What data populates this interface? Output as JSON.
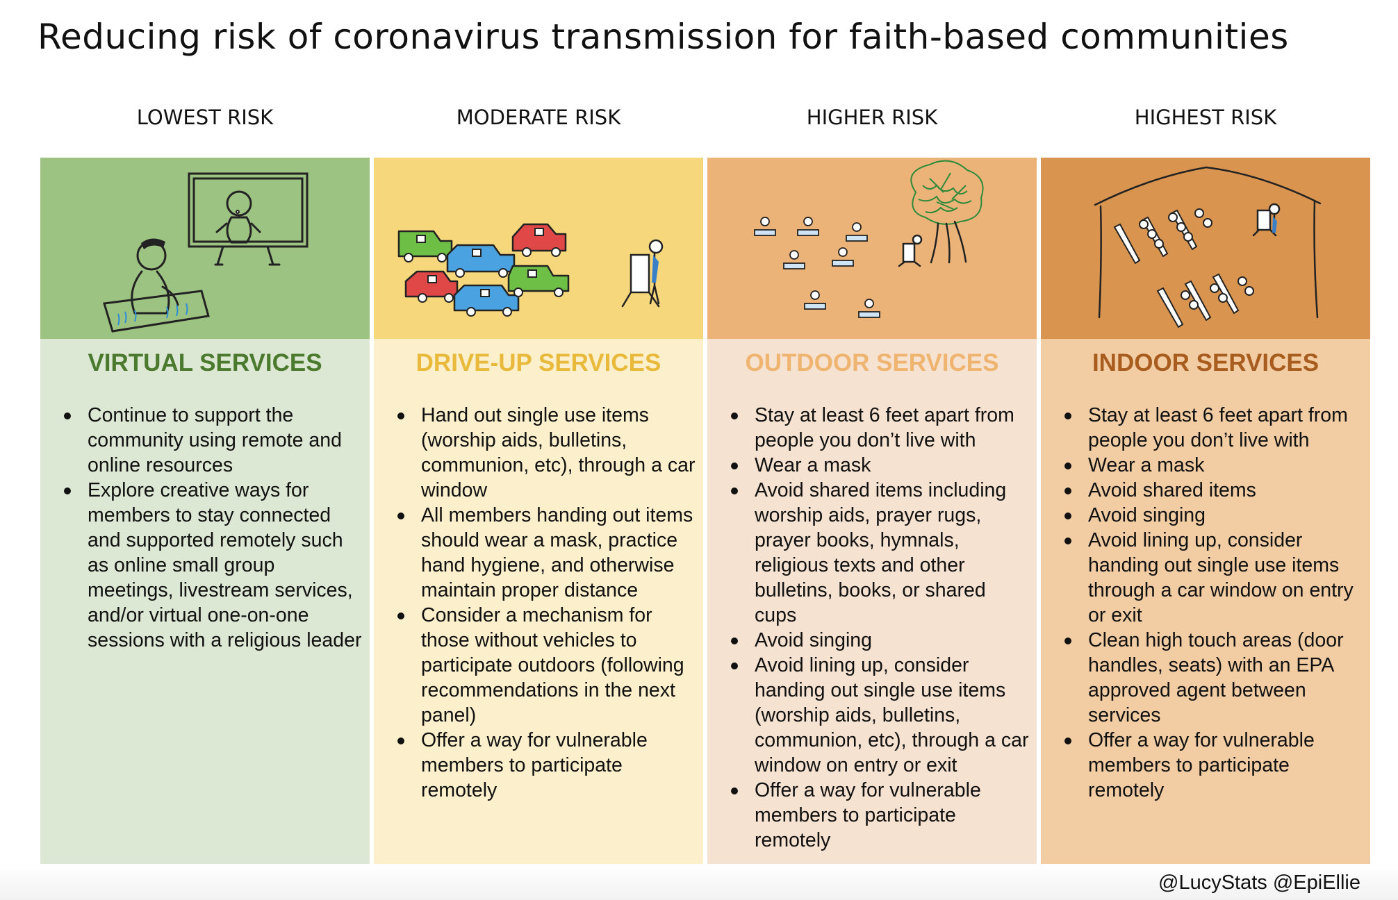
{
  "title": "Reducing risk of coronavirus transmission for faith-based communities",
  "credit": "@LucyStats @EpiEllie",
  "colors": {
    "virtual_top": "#9dc383",
    "virtual_body": "#dce8d3",
    "virtual_heading": "#4b7a2e",
    "drive_top": "#f7d77b",
    "drive_body": "#fcf0cc",
    "drive_heading": "#e8b93a",
    "outdoor_top": "#ebb378",
    "outdoor_body": "#f6e2d0",
    "outdoor_heading": "#efb46f",
    "indoor_top": "#d99550",
    "indoor_body": "#f2cda4",
    "indoor_heading": "#a85d1e"
  },
  "columns": [
    {
      "risk": "LOWEST RISK",
      "heading": "VIRTUAL SERVICES",
      "illustration": "person-watching-screen-icon",
      "items": [
        "Continue to support the community using remote and online resources",
        "Explore creative ways for members to stay connected and supported remotely such as online small group meetings, livestream services, and/or virtual one-on-one sessions with a religious leader"
      ]
    },
    {
      "risk": "MODERATE RISK",
      "heading": "DRIVE-UP SERVICES",
      "illustration": "cars-and-podium-icon",
      "items": [
        "Hand out single use items (worship aids, bulletins, communion, etc), through a car window",
        "All members handing out items should wear a mask, practice hand hygiene, and otherwise maintain proper distance",
        "Consider a mechanism for those without vehicles to participate outdoors (following recommendations in the next panel)",
        "Offer a way for vulnerable members to participate remotely"
      ]
    },
    {
      "risk": "HIGHER RISK",
      "heading": "OUTDOOR SERVICES",
      "illustration": "outdoor-gathering-tree-icon",
      "items": [
        "Stay at least 6 feet apart from people you don’t live with",
        "Wear a mask",
        "Avoid shared items including worship aids, prayer rugs, prayer books, hymnals, religious texts and other bulletins, books, or shared cups",
        "Avoid singing",
        "Avoid lining up, consider handing out single use items (worship aids, bulletins, communion, etc), through a car window on entry or exit",
        "Offer a way for vulnerable members to participate remotely"
      ]
    },
    {
      "risk": "HIGHEST RISK",
      "heading": "INDOOR SERVICES",
      "illustration": "indoor-pews-building-icon",
      "items": [
        "Stay at least 6 feet apart from people you don’t live with",
        "Wear a mask",
        "Avoid shared items",
        "Avoid singing",
        "Avoid lining up, consider handing out single use items through a car window on entry or exit",
        "Clean high touch areas (door handles, seats) with an EPA approved agent between services",
        "Offer a way for vulnerable members to participate remotely"
      ]
    }
  ]
}
